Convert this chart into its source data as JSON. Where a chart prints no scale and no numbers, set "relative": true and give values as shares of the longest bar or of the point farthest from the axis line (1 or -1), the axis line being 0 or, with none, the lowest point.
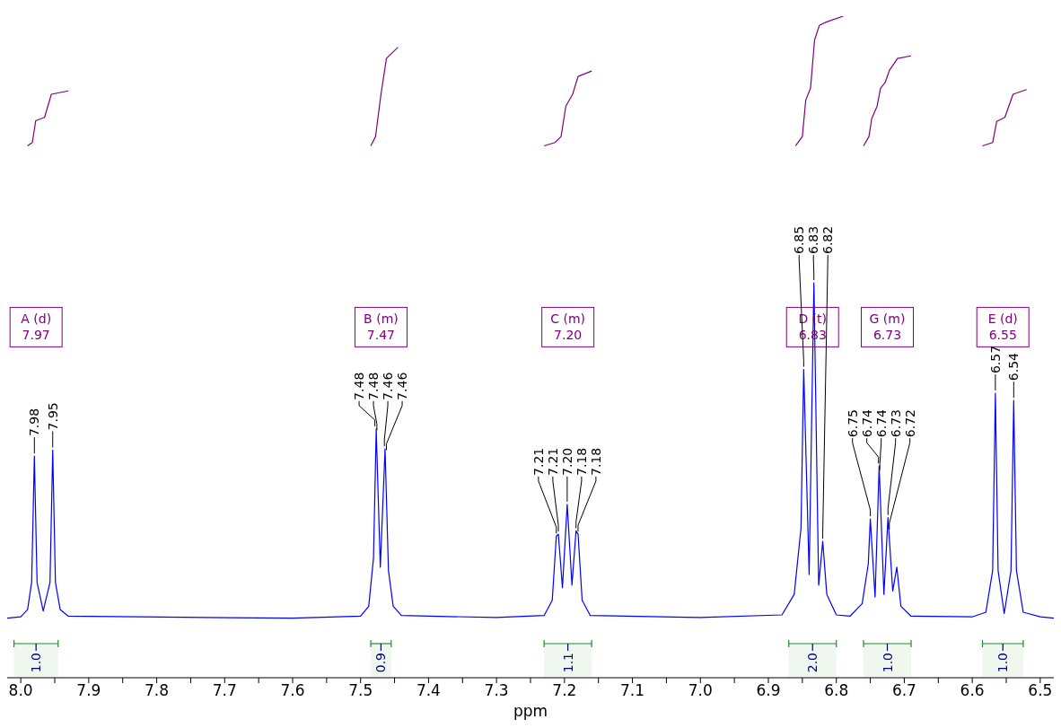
{
  "chart_data": {
    "type": "line",
    "relative": true,
    "xlabel": "ppm",
    "xlim": [
      8.02,
      6.48
    ],
    "xticks": [
      {
        "value": 8,
        "label": "8.0"
      },
      {
        "value": 7.95,
        "label": null
      },
      7.9,
      {
        "value": 7.85,
        "label": null
      },
      7.8,
      {
        "value": 7.75,
        "label": null
      },
      7.7,
      {
        "value": 7.65,
        "label": null
      },
      7.6,
      {
        "value": 7.55,
        "label": null
      },
      7.5,
      {
        "value": 7.45,
        "label": null
      },
      7.4,
      {
        "value": 7.35,
        "label": null
      },
      7.3,
      {
        "value": 7.25,
        "label": null
      },
      7.2,
      {
        "value": 7.15,
        "label": null
      },
      7.1,
      {
        "value": 7.05,
        "label": null
      },
      {
        "value": 7,
        "label": "7.0"
      },
      {
        "value": 6.95,
        "label": null
      },
      6.9,
      {
        "value": 6.85,
        "label": null
      },
      6.8,
      {
        "value": 6.75,
        "label": null
      },
      6.7,
      {
        "value": 6.65,
        "label": null
      },
      6.6,
      {
        "value": 6.55,
        "label": null
      },
      6.5
    ],
    "series": [
      {
        "color": "#0000ff",
        "x": [
          8.02,
          8.0,
          7.99,
          7.984,
          7.98,
          7.976,
          7.967,
          7.957,
          7.953,
          7.949,
          7.942,
          7.93,
          7.6,
          7.5,
          7.488,
          7.481,
          7.477,
          7.471,
          7.464,
          7.459,
          7.452,
          7.44,
          7.3,
          7.23,
          7.218,
          7.212,
          7.209,
          7.203,
          7.196,
          7.189,
          7.183,
          7.18,
          7.174,
          7.162,
          7.0,
          6.88,
          6.862,
          6.852,
          6.848,
          6.84,
          6.833,
          6.826,
          6.82,
          6.814,
          6.8,
          6.78,
          6.762,
          6.753,
          6.75,
          6.743,
          6.737,
          6.73,
          6.724,
          6.717,
          6.711,
          6.705,
          6.69,
          6.6,
          6.58,
          6.57,
          6.566,
          6.562,
          6.553,
          6.543,
          6.539,
          6.535,
          6.525,
          6.5,
          6.48
        ],
        "values": [
          0.09,
          0.092,
          0.103,
          0.144,
          0.335,
          0.144,
          0.101,
          0.144,
          0.344,
          0.144,
          0.103,
          0.093,
          0.09,
          0.093,
          0.108,
          0.181,
          0.376,
          0.167,
          0.346,
          0.162,
          0.108,
          0.094,
          0.091,
          0.094,
          0.117,
          0.214,
          0.217,
          0.136,
          0.262,
          0.14,
          0.222,
          0.217,
          0.117,
          0.094,
          0.091,
          0.095,
          0.126,
          0.226,
          0.466,
          0.156,
          0.597,
          0.14,
          0.206,
          0.126,
          0.095,
          0.093,
          0.112,
          0.172,
          0.24,
          0.122,
          0.32,
          0.126,
          0.242,
          0.131,
          0.167,
          0.108,
          0.093,
          0.092,
          0.099,
          0.162,
          0.43,
          0.162,
          0.097,
          0.162,
          0.419,
          0.162,
          0.099,
          0.092,
          0.09
        ]
      },
      {
        "color": "#800080",
        "x": [
          7.99,
          7.983,
          7.978,
          7.965,
          7.955,
          7.93
        ],
        "values": [
          0.804,
          0.809,
          0.842,
          0.847,
          0.882,
          0.887
        ]
      },
      {
        "color": "#800080",
        "x": [
          7.485,
          7.478,
          7.47,
          7.462,
          7.445
        ],
        "values": [
          0.804,
          0.818,
          0.882,
          0.936,
          0.953
        ]
      },
      {
        "color": "#800080",
        "x": [
          7.23,
          7.214,
          7.205,
          7.198,
          7.188,
          7.18,
          7.16
        ],
        "values": [
          0.804,
          0.809,
          0.818,
          0.864,
          0.882,
          0.909,
          0.917
        ]
      },
      {
        "color": "#800080",
        "x": [
          6.86,
          6.85,
          6.845,
          6.838,
          6.832,
          6.825,
          6.815,
          6.79
        ],
        "values": [
          0.804,
          0.818,
          0.873,
          0.891,
          0.964,
          0.986,
          0.991,
          1.0
        ]
      },
      {
        "color": "#800080",
        "x": [
          6.76,
          6.752,
          6.748,
          6.74,
          6.735,
          6.728,
          6.722,
          6.716,
          6.71,
          6.69
        ],
        "values": [
          0.804,
          0.818,
          0.845,
          0.864,
          0.891,
          0.9,
          0.918,
          0.927,
          0.936,
          0.94
        ]
      },
      {
        "color": "#800080",
        "x": [
          6.585,
          6.57,
          6.564,
          6.552,
          6.54,
          6.52
        ],
        "values": [
          0.804,
          0.809,
          0.841,
          0.847,
          0.882,
          0.889
        ]
      }
    ],
    "annotations": [
      "A (d)\n7.97",
      "B (m)\n7.47",
      "C (m)\n7.20",
      "D (t)\n6.83",
      "G (m)\n6.73",
      "E (d)\n6.55",
      {
        "text": "7.98",
        "x": 7.98,
        "y": 0.335
      },
      {
        "text": "7.95",
        "x": 7.953,
        "y": 0.344
      },
      {
        "text": "7.48",
        "x": 7.479,
        "y": 0.376
      },
      {
        "text": "7.48",
        "x": 7.476,
        "y": 0.37
      },
      {
        "text": "7.46",
        "x": 7.465,
        "y": 0.346
      },
      {
        "text": "7.46",
        "x": 7.462,
        "y": 0.34
      },
      {
        "text": "7.21",
        "x": 7.212,
        "y": 0.214
      },
      {
        "text": "7.21",
        "x": 7.209,
        "y": 0.217
      },
      {
        "text": "7.20",
        "x": 7.196,
        "y": 0.262
      },
      {
        "text": "7.18",
        "x": 7.183,
        "y": 0.222
      },
      {
        "text": "7.18",
        "x": 7.18,
        "y": 0.217
      },
      {
        "text": "6.85",
        "x": 6.848,
        "y": 0.466
      },
      {
        "text": "6.83",
        "x": 6.833,
        "y": 0.597
      },
      {
        "text": "6.82",
        "x": 6.82,
        "y": 0.206
      },
      {
        "text": "6.75",
        "x": 6.75,
        "y": 0.24
      },
      {
        "text": "6.74",
        "x": 6.738,
        "y": 0.32
      },
      {
        "text": "6.74",
        "x": 6.736,
        "y": 0.31
      },
      {
        "text": "6.73",
        "x": 6.724,
        "y": 0.242
      },
      {
        "text": "6.72",
        "x": 6.722,
        "y": 0.22
      },
      {
        "text": "6.57",
        "x": 6.566,
        "y": 0.43
      },
      {
        "text": "6.54",
        "x": 6.539,
        "y": 0.419
      }
    ],
    "bands": [
      {
        "axis": "x",
        "from": 8.01,
        "to": 7.945,
        "label": "1.0",
        "color": "#228b22"
      },
      {
        "axis": "x",
        "from": 7.485,
        "to": 7.455,
        "label": "0.9",
        "color": "#228b22"
      },
      {
        "axis": "x",
        "from": 7.23,
        "to": 7.16,
        "label": "1.1",
        "color": "#228b22"
      },
      {
        "axis": "x",
        "from": 6.87,
        "to": 6.8,
        "label": "2.0",
        "color": "#228b22"
      },
      {
        "axis": "x",
        "from": 6.76,
        "to": 6.69,
        "label": "1.0",
        "color": "#228b22"
      },
      {
        "axis": "x",
        "from": 6.585,
        "to": 6.525,
        "label": "1.0",
        "color": "#228b22"
      }
    ]
  }
}
